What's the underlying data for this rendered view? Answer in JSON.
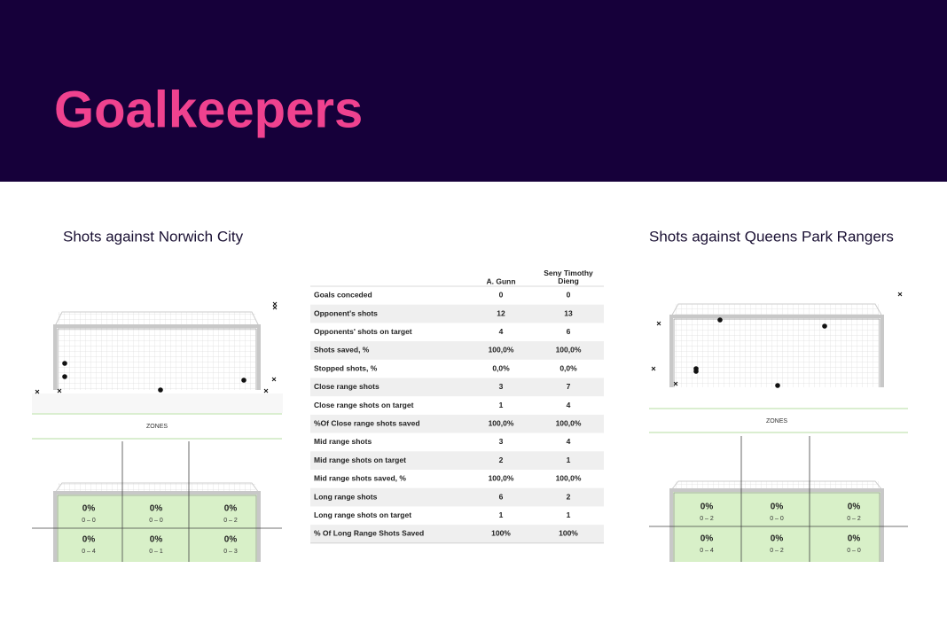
{
  "header": {
    "title": "Goalkeepers"
  },
  "left": {
    "title": "Shots against Norwich City",
    "zones_label": "ZONES",
    "zones": [
      {
        "pct": "0%",
        "count": "0 – 0"
      },
      {
        "pct": "0%",
        "count": "0 – 0"
      },
      {
        "pct": "0%",
        "count": "0 – 2"
      },
      {
        "pct": "0%",
        "count": "0 – 4"
      },
      {
        "pct": "0%",
        "count": "0 – 1"
      },
      {
        "pct": "0%",
        "count": "0 – 3"
      }
    ]
  },
  "right": {
    "title": "Shots against Queens Park Rangers",
    "zones_label": "ZONES",
    "zones": [
      {
        "pct": "0%",
        "count": "0 – 2"
      },
      {
        "pct": "0%",
        "count": "0 – 0"
      },
      {
        "pct": "0%",
        "count": "0 – 2"
      },
      {
        "pct": "0%",
        "count": "0 – 4"
      },
      {
        "pct": "0%",
        "count": "0 – 2"
      },
      {
        "pct": "0%",
        "count": "0 – 0"
      }
    ]
  },
  "table": {
    "columns": [
      "A. Gunn",
      "Seny Timothy Dieng"
    ],
    "rows": [
      [
        "Goals conceded",
        "0",
        "0"
      ],
      [
        "Opponent's shots",
        "12",
        "13"
      ],
      [
        "Opponents' shots  on target",
        "4",
        "6"
      ],
      [
        "Shots saved, %",
        "100,0%",
        "100,0%"
      ],
      [
        "Stopped shots, %",
        "0,0%",
        "0,0%"
      ],
      [
        "Close range shots",
        "3",
        "7"
      ],
      [
        "Close range shots on target",
        "1",
        "4"
      ],
      [
        "%Of Close range shots saved",
        "100,0%",
        "100,0%"
      ],
      [
        "Mid range shots",
        "3",
        "4"
      ],
      [
        "Mid range shots on target",
        "2",
        "1"
      ],
      [
        "Mid range shots saved, %",
        "100,0%",
        "100,0%"
      ],
      [
        "Long range shots",
        "6",
        "2"
      ],
      [
        "Long range shots on target",
        "1",
        "1"
      ],
      [
        "% Of Long Range Shots Saved",
        "100%",
        "100%"
      ]
    ]
  }
}
